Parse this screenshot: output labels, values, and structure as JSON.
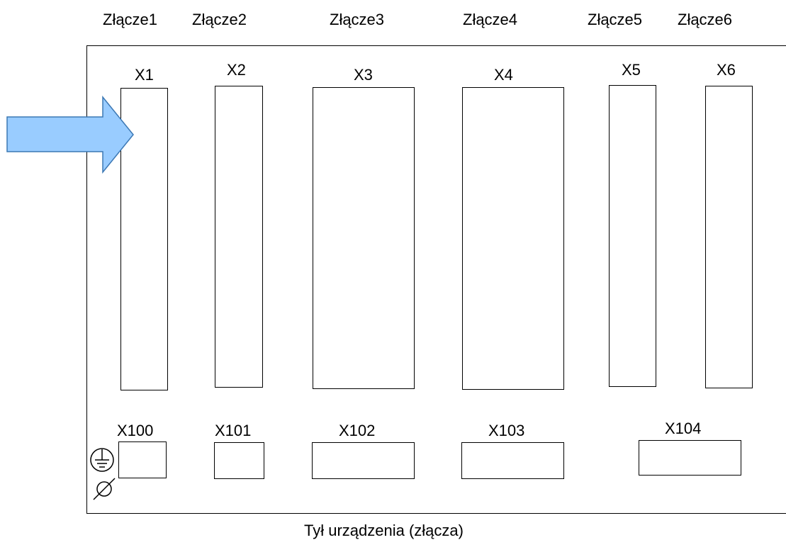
{
  "headers": [
    "Złącze1",
    "Złącze2",
    "Złącze3",
    "Złącze4",
    "Złącze5",
    "Złącze6"
  ],
  "connectors_top": [
    "X1",
    "X2",
    "X3",
    "X4",
    "X5",
    "X6"
  ],
  "connectors_bottom": [
    "X100",
    "X101",
    "X102",
    "X103",
    "X104"
  ],
  "caption": "Tył urządzenia (złącza)",
  "colors": {
    "arrow_fill": "#99ccff",
    "arrow_stroke": "#3c78b4",
    "line": "#000000"
  },
  "icons": {
    "ground": "earth-ground-icon",
    "diameter": "diameter-icon",
    "arrow": "arrow-right-icon"
  }
}
